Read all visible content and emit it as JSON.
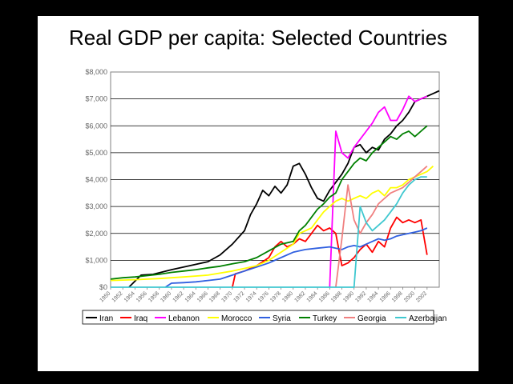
{
  "slide": {
    "title": "Real GDP per capita: Selected Countries"
  },
  "colors": {
    "slide_background": "#ffffff",
    "page_background": "#000000"
  },
  "chart_data": {
    "type": "line",
    "title": "",
    "xlabel": "",
    "ylabel": "",
    "ylim": [
      0,
      8000
    ],
    "xlim": [
      1950,
      2004
    ],
    "grid": "horizontal",
    "legend_position": "bottom",
    "y_ticks": [
      {
        "value": 0,
        "label": "$0"
      },
      {
        "value": 1000,
        "label": "$1,000"
      },
      {
        "value": 2000,
        "label": "$2,000"
      },
      {
        "value": 3000,
        "label": "$3,000"
      },
      {
        "value": 4000,
        "label": "$4,000"
      },
      {
        "value": 5000,
        "label": "$5,000"
      },
      {
        "value": 6000,
        "label": "$6,000"
      },
      {
        "value": 7000,
        "label": "$7,000"
      },
      {
        "value": 8000,
        "label": "$8,000"
      }
    ],
    "x_ticks": [
      "1950",
      "1952",
      "1954",
      "1956",
      "1958",
      "1960",
      "1962",
      "1964",
      "1966",
      "1968",
      "1970",
      "1972",
      "1974",
      "1976",
      "1978",
      "1980",
      "1982",
      "1984",
      "1986",
      "1988",
      "1990",
      "1992",
      "1994",
      "1996",
      "1998",
      "2000",
      "2002"
    ],
    "series": [
      {
        "name": "Iran",
        "color": "#000000",
        "points": [
          [
            1953,
            0
          ],
          [
            1955,
            450
          ],
          [
            1957,
            480
          ],
          [
            1960,
            650
          ],
          [
            1963,
            800
          ],
          [
            1966,
            950
          ],
          [
            1968,
            1200
          ],
          [
            1970,
            1600
          ],
          [
            1972,
            2100
          ],
          [
            1973,
            2700
          ],
          [
            1974,
            3100
          ],
          [
            1975,
            3600
          ],
          [
            1976,
            3400
          ],
          [
            1977,
            3750
          ],
          [
            1978,
            3500
          ],
          [
            1979,
            3800
          ],
          [
            1980,
            4500
          ],
          [
            1981,
            4600
          ],
          [
            1982,
            4200
          ],
          [
            1983,
            3700
          ],
          [
            1984,
            3300
          ],
          [
            1985,
            3200
          ],
          [
            1986,
            3600
          ],
          [
            1987,
            3900
          ],
          [
            1988,
            4200
          ],
          [
            1989,
            4600
          ],
          [
            1990,
            5200
          ],
          [
            1991,
            5300
          ],
          [
            1992,
            5000
          ],
          [
            1993,
            5200
          ],
          [
            1994,
            5100
          ],
          [
            1995,
            5500
          ],
          [
            1996,
            5700
          ],
          [
            1997,
            6000
          ],
          [
            1998,
            6200
          ],
          [
            1999,
            6500
          ],
          [
            2000,
            6900
          ],
          [
            2001,
            7000
          ],
          [
            2002,
            7100
          ],
          [
            2003,
            7200
          ],
          [
            2004,
            7300
          ]
        ]
      },
      {
        "name": "Iraq",
        "color": "#ff0000",
        "points": [
          [
            1970,
            0
          ],
          [
            1970.5,
            500
          ],
          [
            1972,
            600
          ],
          [
            1974,
            800
          ],
          [
            1976,
            1100
          ],
          [
            1977,
            1500
          ],
          [
            1978,
            1700
          ],
          [
            1979,
            1500
          ],
          [
            1980,
            1600
          ],
          [
            1981,
            1800
          ],
          [
            1982,
            1700
          ],
          [
            1983,
            2000
          ],
          [
            1984,
            2300
          ],
          [
            1985,
            2100
          ],
          [
            1986,
            2200
          ],
          [
            1987,
            2000
          ],
          [
            1988,
            800
          ],
          [
            1989,
            900
          ],
          [
            1990,
            1100
          ],
          [
            1991,
            1400
          ],
          [
            1992,
            1600
          ],
          [
            1993,
            1300
          ],
          [
            1994,
            1700
          ],
          [
            1995,
            1500
          ],
          [
            1996,
            2200
          ],
          [
            1997,
            2600
          ],
          [
            1998,
            2400
          ],
          [
            1999,
            2500
          ],
          [
            2000,
            2400
          ],
          [
            2001,
            2500
          ],
          [
            2002,
            1200
          ]
        ]
      },
      {
        "name": "Lebanon",
        "color": "#ff00ff",
        "points": [
          [
            1986,
            0
          ],
          [
            1987,
            5800
          ],
          [
            1988,
            5000
          ],
          [
            1989,
            4800
          ],
          [
            1990,
            5200
          ],
          [
            1991,
            5500
          ],
          [
            1992,
            5800
          ],
          [
            1993,
            6100
          ],
          [
            1994,
            6500
          ],
          [
            1995,
            6700
          ],
          [
            1996,
            6200
          ],
          [
            1997,
            6200
          ],
          [
            1998,
            6600
          ],
          [
            1999,
            7100
          ],
          [
            2000,
            6900
          ],
          [
            2001,
            7000
          ],
          [
            2002,
            7100
          ]
        ]
      },
      {
        "name": "Morocco",
        "color": "#ffff00",
        "points": [
          [
            1950,
            250
          ],
          [
            1954,
            280
          ],
          [
            1958,
            320
          ],
          [
            1962,
            380
          ],
          [
            1966,
            450
          ],
          [
            1970,
            600
          ],
          [
            1972,
            700
          ],
          [
            1974,
            800
          ],
          [
            1976,
            1000
          ],
          [
            1978,
            1300
          ],
          [
            1980,
            1600
          ],
          [
            1981,
            2000
          ],
          [
            1982,
            2100
          ],
          [
            1983,
            2200
          ],
          [
            1984,
            2500
          ],
          [
            1985,
            2800
          ],
          [
            1986,
            3000
          ],
          [
            1987,
            3200
          ],
          [
            1988,
            3300
          ],
          [
            1989,
            3200
          ],
          [
            1990,
            3300
          ],
          [
            1991,
            3400
          ],
          [
            1992,
            3300
          ],
          [
            1993,
            3500
          ],
          [
            1994,
            3600
          ],
          [
            1995,
            3400
          ],
          [
            1996,
            3700
          ],
          [
            1997,
            3700
          ],
          [
            1998,
            3800
          ],
          [
            1999,
            4000
          ],
          [
            2000,
            4100
          ],
          [
            2001,
            4200
          ],
          [
            2002,
            4300
          ],
          [
            2003,
            4500
          ]
        ]
      },
      {
        "name": "Syria",
        "color": "#3060e0",
        "points": [
          [
            1959,
            0
          ],
          [
            1960,
            150
          ],
          [
            1962,
            170
          ],
          [
            1964,
            200
          ],
          [
            1966,
            250
          ],
          [
            1968,
            300
          ],
          [
            1970,
            450
          ],
          [
            1972,
            600
          ],
          [
            1974,
            750
          ],
          [
            1976,
            900
          ],
          [
            1978,
            1100
          ],
          [
            1980,
            1300
          ],
          [
            1982,
            1400
          ],
          [
            1984,
            1450
          ],
          [
            1986,
            1500
          ],
          [
            1988,
            1400
          ],
          [
            1989,
            1500
          ],
          [
            1990,
            1550
          ],
          [
            1991,
            1500
          ],
          [
            1992,
            1600
          ],
          [
            1993,
            1700
          ],
          [
            1994,
            1800
          ],
          [
            1995,
            1750
          ],
          [
            1996,
            1800
          ],
          [
            1997,
            1900
          ],
          [
            1998,
            1950
          ],
          [
            1999,
            2000
          ],
          [
            2000,
            2050
          ],
          [
            2001,
            2100
          ],
          [
            2002,
            2200
          ]
        ]
      },
      {
        "name": "Turkey",
        "color": "#008000",
        "points": [
          [
            1950,
            300
          ],
          [
            1952,
            350
          ],
          [
            1954,
            380
          ],
          [
            1956,
            430
          ],
          [
            1958,
            480
          ],
          [
            1960,
            550
          ],
          [
            1962,
            600
          ],
          [
            1964,
            650
          ],
          [
            1966,
            720
          ],
          [
            1968,
            780
          ],
          [
            1970,
            870
          ],
          [
            1972,
            950
          ],
          [
            1974,
            1100
          ],
          [
            1976,
            1350
          ],
          [
            1978,
            1600
          ],
          [
            1980,
            1700
          ],
          [
            1981,
            2100
          ],
          [
            1982,
            2300
          ],
          [
            1983,
            2600
          ],
          [
            1984,
            2900
          ],
          [
            1985,
            3100
          ],
          [
            1986,
            3350
          ],
          [
            1987,
            3500
          ],
          [
            1988,
            4000
          ],
          [
            1989,
            4300
          ],
          [
            1990,
            4600
          ],
          [
            1991,
            4800
          ],
          [
            1992,
            4700
          ],
          [
            1993,
            5000
          ],
          [
            1994,
            5200
          ],
          [
            1995,
            5400
          ],
          [
            1996,
            5600
          ],
          [
            1997,
            5500
          ],
          [
            1998,
            5700
          ],
          [
            1999,
            5800
          ],
          [
            2000,
            5600
          ],
          [
            2001,
            5800
          ],
          [
            2002,
            6000
          ]
        ]
      },
      {
        "name": "Georgia",
        "color": "#f08080",
        "points": [
          [
            1987,
            0
          ],
          [
            1988,
            1800
          ],
          [
            1989,
            3800
          ],
          [
            1990,
            2500
          ],
          [
            1991,
            2000
          ],
          [
            1992,
            2400
          ],
          [
            1993,
            2700
          ],
          [
            1994,
            3100
          ],
          [
            1995,
            3300
          ],
          [
            1996,
            3500
          ],
          [
            1997,
            3600
          ],
          [
            1998,
            3700
          ],
          [
            1999,
            3900
          ],
          [
            2000,
            4100
          ],
          [
            2001,
            4300
          ],
          [
            2002,
            4500
          ]
        ]
      },
      {
        "name": "Azerbaijan",
        "color": "#40c8d0",
        "points": [
          [
            1950,
            0
          ],
          [
            1989,
            0
          ],
          [
            1990,
            0
          ],
          [
            1991,
            3000
          ],
          [
            1992,
            2400
          ],
          [
            1993,
            2100
          ],
          [
            1994,
            2300
          ],
          [
            1995,
            2500
          ],
          [
            1996,
            2800
          ],
          [
            1997,
            3100
          ],
          [
            1998,
            3500
          ],
          [
            1999,
            3800
          ],
          [
            2000,
            4000
          ],
          [
            2001,
            4100
          ],
          [
            2002,
            4100
          ]
        ]
      }
    ]
  }
}
